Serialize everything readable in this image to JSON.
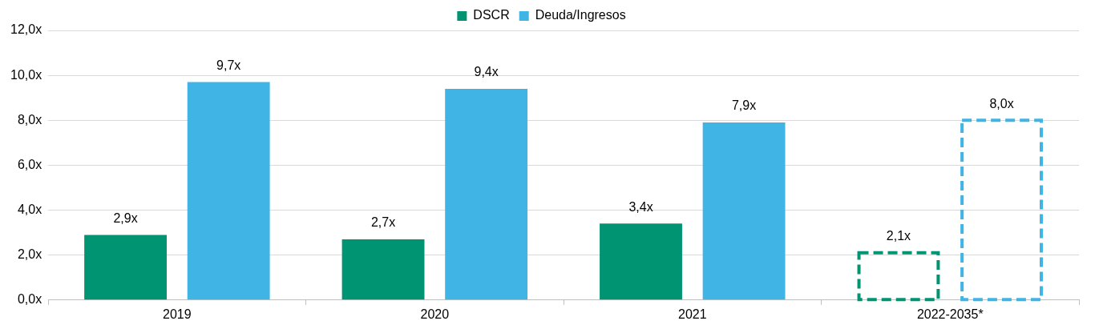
{
  "chart_data": {
    "type": "bar",
    "categories": [
      "2019",
      "2020",
      "2021",
      "2022-2035*"
    ],
    "series": [
      {
        "name": "DSCR",
        "color": "#009473",
        "values": [
          2.9,
          2.7,
          3.4,
          null
        ],
        "value_labels": [
          "2,9x",
          "2,7x",
          "3,4x",
          null
        ]
      },
      {
        "color": "#009473",
        "values": [
          null,
          null,
          null,
          2.1
        ],
        "value_labels": [
          null,
          null,
          null,
          "2,1x"
        ],
        "line_style": "dashed"
      },
      {
        "name": "Deuda/Ingresos",
        "color": "#41b4e6",
        "values": [
          9.7,
          9.4,
          7.9,
          null
        ],
        "value_labels": [
          "9,7x",
          "9,4x",
          "7,9x",
          null
        ]
      },
      {
        "color": "#41b4e6",
        "values": [
          null,
          null,
          null,
          8.0
        ],
        "value_labels": [
          null,
          null,
          null,
          "8,0x"
        ],
        "line_style": "dashed"
      }
    ],
    "ylim": [
      0,
      12
    ],
    "yticks": [
      {
        "value": 0,
        "label": "0,0x"
      },
      {
        "value": 2,
        "label": "2,0x"
      },
      {
        "value": 4,
        "label": "4,0x"
      },
      {
        "value": 6,
        "label": "6,0x"
      },
      {
        "value": 8,
        "label": "8,0x"
      },
      {
        "value": 10,
        "label": "10,0x"
      },
      {
        "value": 12,
        "label": "12,0x"
      }
    ],
    "grid": "y",
    "legend": "top"
  }
}
